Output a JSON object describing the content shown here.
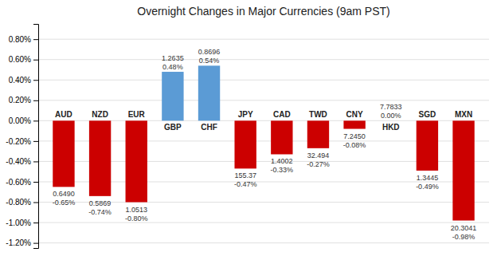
{
  "chart_data": {
    "type": "bar",
    "title": "Overnight Changes in Major Currencies (9am PST)",
    "categories": [
      "AUD",
      "NZD",
      "EUR",
      "GBP",
      "CHF",
      "JPY",
      "CAD",
      "TWD",
      "CNY",
      "HKD",
      "SGD",
      "MXN"
    ],
    "values": [
      -0.0065,
      -0.0074,
      -0.008,
      0.0048,
      0.0054,
      -0.0047,
      -0.0033,
      -0.0027,
      -0.0008,
      0.0,
      -0.0049,
      -0.0098
    ],
    "value_labels": [
      "-0.65%",
      "-0.74%",
      "-0.80%",
      "0.48%",
      "0.54%",
      "-0.47%",
      "-0.33%",
      "-0.27%",
      "-0.08%",
      "0.00%",
      "-0.49%",
      "-0.98%"
    ],
    "rate_labels": [
      "0.6490",
      "0.5869",
      "1.0513",
      "1.2635",
      "0.8696",
      "155.37",
      "1.4002",
      "32.494",
      "7.2450",
      "7.7833",
      "1.3445",
      "20.3041"
    ],
    "colors": [
      "#cc0000",
      "#cc0000",
      "#cc0000",
      "#5b9bd5",
      "#5b9bd5",
      "#cc0000",
      "#cc0000",
      "#cc0000",
      "#cc0000",
      "#5b9bd5",
      "#cc0000",
      "#cc0000"
    ],
    "ylim": [
      -0.0125,
      0.0095
    ],
    "yticks": [
      {
        "value": -0.012,
        "label": "-1.20%"
      },
      {
        "value": -0.01,
        "label": "-1.00%"
      },
      {
        "value": -0.008,
        "label": "-0.80%"
      },
      {
        "value": -0.006,
        "label": "-0.60%"
      },
      {
        "value": -0.004,
        "label": "-0.40%"
      },
      {
        "value": -0.002,
        "label": "-0.20%"
      },
      {
        "value": 0.0,
        "label": "0.00%"
      },
      {
        "value": 0.002,
        "label": "0.20%"
      },
      {
        "value": 0.004,
        "label": "0.40%"
      },
      {
        "value": 0.006,
        "label": "0.60%"
      },
      {
        "value": 0.008,
        "label": "0.80%"
      }
    ],
    "grid": true,
    "data_labels": true
  }
}
